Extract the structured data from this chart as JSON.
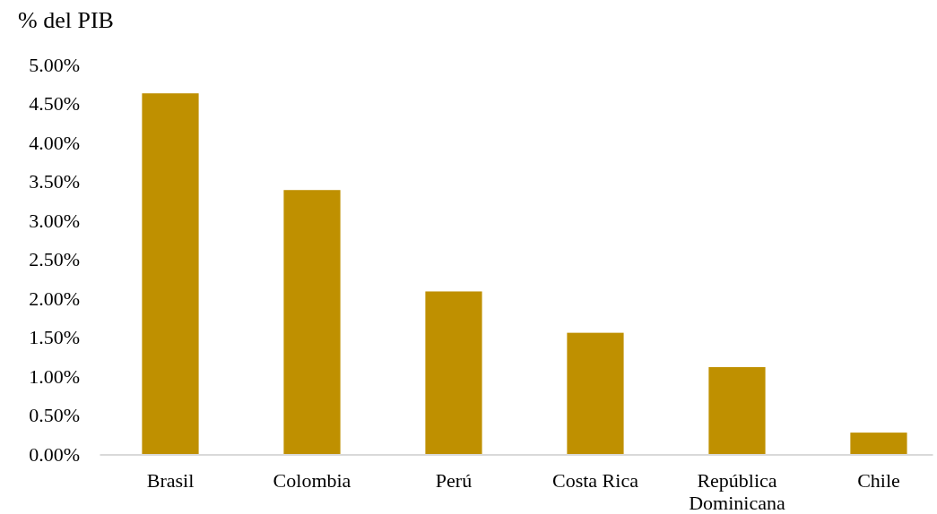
{
  "chart_data": {
    "type": "bar",
    "ylabel": "% del PIB",
    "categories": [
      "Brasil",
      "Colombia",
      "Perú",
      "Costa Rica",
      "República Dominicana",
      "Chile"
    ],
    "values": [
      4.63,
      3.39,
      2.09,
      1.56,
      1.12,
      0.28
    ],
    "color": "#bf9000",
    "ylim": [
      0,
      5
    ],
    "yticks": [
      {
        "value": 0,
        "label": "0.00%"
      },
      {
        "value": 0.5,
        "label": "0.50%"
      },
      {
        "value": 1,
        "label": "1.00%"
      },
      {
        "value": 1.5,
        "label": "1.50%"
      },
      {
        "value": 2,
        "label": "2.00%"
      },
      {
        "value": 2.5,
        "label": "2.50%"
      },
      {
        "value": 3,
        "label": "3.00%"
      },
      {
        "value": 3.5,
        "label": "3.50%"
      },
      {
        "value": 4,
        "label": "4.00%"
      },
      {
        "value": 4.5,
        "label": "4.50%"
      },
      {
        "value": 5,
        "label": "5.00%"
      }
    ]
  }
}
